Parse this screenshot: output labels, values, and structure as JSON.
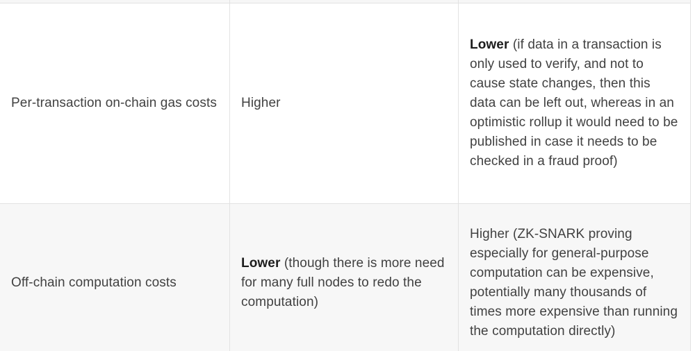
{
  "table": {
    "description": "Comparison table fragment (two property rows, three columns; column headers cropped out of view)",
    "rows": [
      {
        "cells": [
          {
            "text": "Per-transaction on-chain gas costs"
          },
          {
            "text": "Higher"
          },
          {
            "bold": "Lower",
            "rest": " (if data in a transaction is only used to verify, and not to cause state changes, then this data can be left out, whereas in an optimistic rollup it would need to be published in case it needs to be checked in a fraud proof)"
          }
        ]
      },
      {
        "cells": [
          {
            "text": "Off-chain computation costs"
          },
          {
            "bold": "Lower",
            "rest": " (though there is more need for many full nodes to redo the computation)"
          },
          {
            "text": "Higher (ZK-SNARK proving especially for general-purpose computation can be expensive, potentially many thousands of times more expensive than running the computation directly)"
          }
        ]
      }
    ]
  },
  "colors": {
    "page_background": "#ffffff",
    "row_alt_background": "#f7f7f7",
    "border": "#e2e2e2",
    "text": "#414141",
    "bold_text": "#1d1d1d"
  }
}
